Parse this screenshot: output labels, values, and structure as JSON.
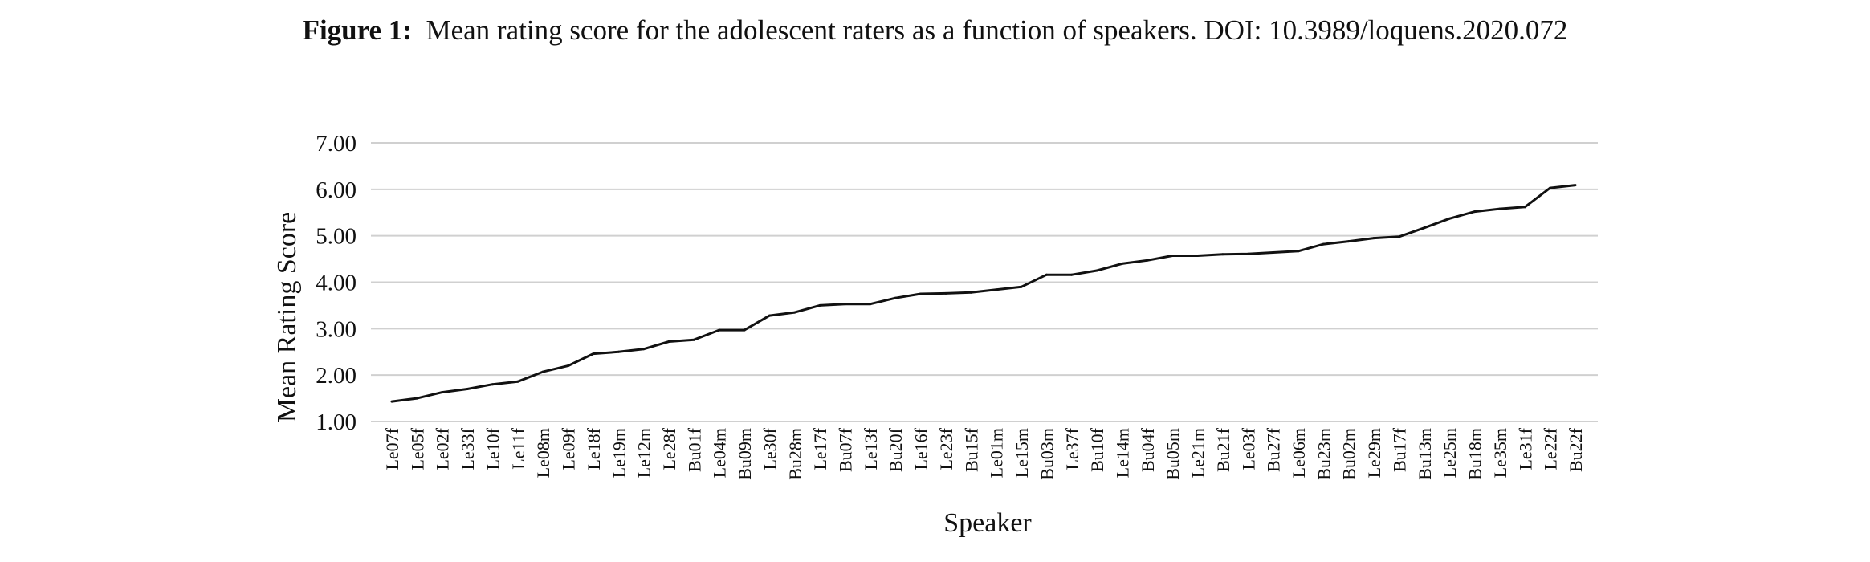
{
  "caption": {
    "label": "Figure 1:",
    "text": "Mean rating score for the adolescent raters as a function of speakers. DOI: 10.3989/loquens.2020.072"
  },
  "colors": {
    "line": "#111111",
    "grid": "#d0d0d0",
    "text": "#111111"
  },
  "chart_data": {
    "type": "line",
    "title": "",
    "xlabel": "Speaker",
    "ylabel": "Mean Rating Score",
    "ylim": [
      1.0,
      7.0
    ],
    "yticks": [
      "1.00",
      "2.00",
      "3.00",
      "4.00",
      "5.00",
      "6.00",
      "7.00"
    ],
    "grid": true,
    "legend": "none",
    "categories": [
      "Le07f",
      "Le05f",
      "Le02f",
      "Le33f",
      "Le10f",
      "Le11f",
      "Le08m",
      "Le09f",
      "Le18f",
      "Le19m",
      "Le12m",
      "Le28f",
      "Bu01f",
      "Le04m",
      "Bu09m",
      "Le30f",
      "Bu28m",
      "Le17f",
      "Bu07f",
      "Le13f",
      "Bu20f",
      "Le16f",
      "Le23f",
      "Bu15f",
      "Le01m",
      "Le15m",
      "Bu03m",
      "Le37f",
      "Bu10f",
      "Le14m",
      "Bu04f",
      "Bu05m",
      "Le21m",
      "Bu21f",
      "Le03f",
      "Bu27f",
      "Le06m",
      "Bu23m",
      "Bu02m",
      "Le29m",
      "Bu17f",
      "Bu13m",
      "Le25m",
      "Bu18m",
      "Le35m",
      "Le31f",
      "Le22f",
      "Bu22f"
    ],
    "series": [
      {
        "values": [
          1.43,
          1.5,
          1.63,
          1.7,
          1.8,
          1.86,
          2.07,
          2.2,
          2.46,
          2.5,
          2.56,
          2.72,
          2.76,
          2.97,
          2.97,
          3.28,
          3.35,
          3.5,
          3.53,
          3.53,
          3.66,
          3.75,
          3.76,
          3.78,
          3.84,
          3.9,
          4.16,
          4.16,
          4.25,
          4.4,
          4.47,
          4.57,
          4.57,
          4.6,
          4.61,
          4.64,
          4.67,
          4.82,
          4.88,
          4.95,
          4.98,
          5.17,
          5.37,
          5.52,
          5.58,
          5.62,
          6.03,
          6.09
        ]
      }
    ]
  }
}
